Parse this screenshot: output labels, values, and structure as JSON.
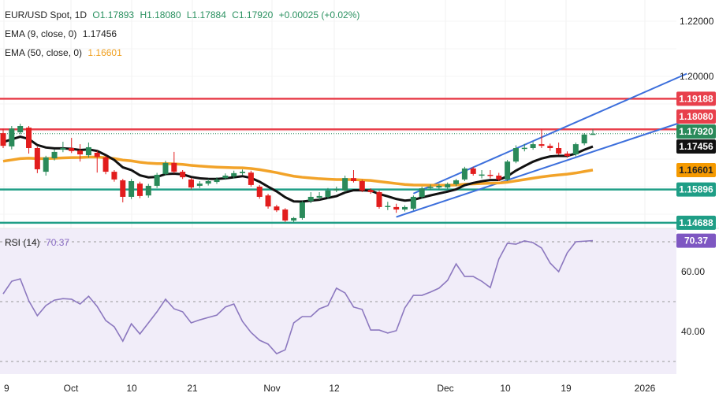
{
  "legend": {
    "symbol": "EUR/USD Spot, 1D",
    "open": "O1.17893",
    "high": "H1.18080",
    "low": "L1.17884",
    "close": "C1.17920",
    "change": "+0.00025 (+0.02%)",
    "ema9_label": "EMA (9, close, 0)",
    "ema9_value": "1.17456",
    "ema50_label": "EMA (50, close, 0)",
    "ema50_value": "1.16601",
    "rsi_label": "RSI (14)",
    "rsi_value": "70.37"
  },
  "colors": {
    "up": "#2a8a5a",
    "down": "#e21d1d",
    "ema9": "#111111",
    "ema50": "#f2a329",
    "channel": "#3c6fdc",
    "resistance": "#e8404c",
    "support": "#1f9e86",
    "rsi": "#8c78bf",
    "rsi_bg": "#f1edf9"
  },
  "chart_data": [
    {
      "type": "candlestick",
      "title": "EUR/USD Spot, 1D",
      "ylim": [
        1.142,
        1.224
      ],
      "y_ticks": [
        "1.22000",
        "1.20000"
      ],
      "x_ticks": [
        "9",
        "Oct",
        "10",
        "21",
        "Nov",
        "12",
        "Dec",
        "10",
        "19",
        "2026"
      ],
      "ohlc": [
        [
          1.1794,
          1.181,
          1.174,
          1.1748
        ],
        [
          1.1746,
          1.182,
          1.1735,
          1.1811
        ],
        [
          1.1797,
          1.1828,
          1.179,
          1.182
        ],
        [
          1.1814,
          1.182,
          1.172,
          1.174
        ],
        [
          1.174,
          1.1745,
          1.1649,
          1.1663
        ],
        [
          1.1654,
          1.1712,
          1.164,
          1.1706
        ],
        [
          1.1703,
          1.1735,
          1.1695,
          1.1726
        ],
        [
          1.1734,
          1.1763,
          1.1725,
          1.174
        ],
        [
          1.174,
          1.1777,
          1.1722,
          1.1729
        ],
        [
          1.1731,
          1.1754,
          1.1691,
          1.1717
        ],
        [
          1.1714,
          1.176,
          1.1706,
          1.1743
        ],
        [
          1.1723,
          1.173,
          1.1651,
          1.1708
        ],
        [
          1.1706,
          1.1712,
          1.1645,
          1.1654
        ],
        [
          1.1654,
          1.166,
          1.1618,
          1.1626
        ],
        [
          1.1623,
          1.1628,
          1.1543,
          1.1563
        ],
        [
          1.1563,
          1.1628,
          1.1555,
          1.162
        ],
        [
          1.1611,
          1.1618,
          1.1558,
          1.1566
        ],
        [
          1.1568,
          1.161,
          1.156,
          1.1603
        ],
        [
          1.1603,
          1.165,
          1.1595,
          1.1643
        ],
        [
          1.1646,
          1.1694,
          1.164,
          1.1686
        ],
        [
          1.1686,
          1.1726,
          1.1648,
          1.1654
        ],
        [
          1.1654,
          1.166,
          1.1628,
          1.1634
        ],
        [
          1.1626,
          1.1632,
          1.159,
          1.1597
        ],
        [
          1.1603,
          1.162,
          1.1595,
          1.1611
        ],
        [
          1.1611,
          1.1628,
          1.1604,
          1.162
        ],
        [
          1.1617,
          1.1634,
          1.161,
          1.1626
        ],
        [
          1.1631,
          1.1648,
          1.1625,
          1.164
        ],
        [
          1.1637,
          1.1658,
          1.163,
          1.1649
        ],
        [
          1.1649,
          1.1662,
          1.1642,
          1.1654
        ],
        [
          1.1651,
          1.1658,
          1.16,
          1.1606
        ],
        [
          1.16,
          1.1606,
          1.1556,
          1.1563
        ],
        [
          1.1568,
          1.1574,
          1.152,
          1.1528
        ],
        [
          1.1528,
          1.1534,
          1.1508,
          1.1514
        ],
        [
          1.1517,
          1.1522,
          1.1472,
          1.1477
        ],
        [
          1.1477,
          1.149,
          1.147,
          1.1486
        ],
        [
          1.1486,
          1.1548,
          1.148,
          1.1543
        ],
        [
          1.1548,
          1.158,
          1.154,
          1.1563
        ],
        [
          1.156,
          1.158,
          1.1552,
          1.1566
        ],
        [
          1.1563,
          1.1595,
          1.1556,
          1.1586
        ],
        [
          1.1586,
          1.16,
          1.158,
          1.1591
        ],
        [
          1.1586,
          1.164,
          1.158,
          1.1631
        ],
        [
          1.1631,
          1.166,
          1.1615,
          1.162
        ],
        [
          1.162,
          1.1625,
          1.158,
          1.1586
        ],
        [
          1.1588,
          1.1594,
          1.1574,
          1.158
        ],
        [
          1.158,
          1.1586,
          1.152,
          1.1526
        ],
        [
          1.1528,
          1.1545,
          1.1515,
          1.153
        ],
        [
          1.1526,
          1.1538,
          1.1505,
          1.1517
        ],
        [
          1.1517,
          1.1532,
          1.151,
          1.1526
        ],
        [
          1.152,
          1.1568,
          1.1514,
          1.1563
        ],
        [
          1.1563,
          1.16,
          1.1556,
          1.1594
        ],
        [
          1.1597,
          1.1608,
          1.1588,
          1.1599
        ],
        [
          1.1597,
          1.161,
          1.159,
          1.1603
        ],
        [
          1.1597,
          1.1615,
          1.159,
          1.1609
        ],
        [
          1.1609,
          1.1628,
          1.1602,
          1.1623
        ],
        [
          1.1626,
          1.1672,
          1.162,
          1.1666
        ],
        [
          1.1666,
          1.1672,
          1.164,
          1.1646
        ],
        [
          1.1643,
          1.166,
          1.163,
          1.1644
        ],
        [
          1.1643,
          1.166,
          1.163,
          1.1642
        ],
        [
          1.164,
          1.165,
          1.162,
          1.1626
        ],
        [
          1.1626,
          1.1697,
          1.162,
          1.1691
        ],
        [
          1.1691,
          1.175,
          1.1685,
          1.174
        ],
        [
          1.174,
          1.1755,
          1.1728,
          1.1741
        ],
        [
          1.174,
          1.1762,
          1.1734,
          1.1754
        ],
        [
          1.1754,
          1.1808,
          1.174,
          1.1748
        ],
        [
          1.1748,
          1.1756,
          1.173,
          1.174
        ],
        [
          1.174,
          1.176,
          1.1715,
          1.172
        ],
        [
          1.172,
          1.1728,
          1.1705,
          1.1711
        ],
        [
          1.1717,
          1.176,
          1.171,
          1.1754
        ],
        [
          1.1757,
          1.1794,
          1.175,
          1.1789
        ],
        [
          1.1789,
          1.1808,
          1.1788,
          1.1792
        ]
      ],
      "ema9": {
        "label": "EMA (9, close, 0)",
        "last": 1.17456
      },
      "ema50": {
        "label": "EMA (50, close, 0)",
        "last": 1.16601
      },
      "horizontal_levels": [
        {
          "value": 1.19188,
          "label": "1.19188",
          "kind": "resistance"
        },
        {
          "value": 1.1808,
          "label": "1.18080",
          "kind": "resistance"
        },
        {
          "value": 1.15896,
          "label": "1.15896",
          "kind": "support"
        },
        {
          "value": 1.14688,
          "label": "1.14688",
          "kind": "support"
        }
      ],
      "price_labels": [
        {
          "label": "1.17920",
          "value": 1.1792,
          "color": "#2a8a5a"
        },
        {
          "label": "1.17456",
          "value": 1.17456,
          "color": "#111111"
        },
        {
          "label": "1.16601",
          "value": 1.16601,
          "color": "#f59a00"
        }
      ],
      "channel": {
        "upper": [
          [
            48,
            1.1575
          ],
          [
            80,
            1.201
          ]
        ],
        "lower": [
          [
            46,
            1.149
          ],
          [
            80,
            1.184
          ]
        ]
      }
    },
    {
      "type": "line",
      "title": "RSI (14)",
      "ylim": [
        26,
        75
      ],
      "y_ticks": [
        "60.00",
        "40.00"
      ],
      "levels": [
        70,
        50,
        30
      ],
      "last_label": "70.37",
      "values": [
        52.6,
        56.8,
        57.6,
        50.3,
        45.3,
        48.7,
        50.5,
        51,
        50.8,
        49.2,
        51.8,
        48.4,
        43.7,
        41.6,
        36.8,
        42.6,
        39.2,
        42.9,
        46.6,
        50.8,
        47.6,
        46.6,
        42.9,
        43.9,
        44.7,
        45.5,
        48.2,
        49.2,
        43.4,
        39.7,
        37.1,
        35.8,
        32.6,
        33.9,
        42.9,
        45,
        45,
        47.6,
        48.7,
        54.5,
        52.9,
        48.2,
        47.4,
        40.5,
        40.5,
        39.5,
        40.3,
        47.9,
        52.1,
        52.1,
        53.2,
        54.5,
        57.1,
        62.6,
        58.4,
        58.4,
        56.8,
        54.7,
        64.2,
        69.5,
        69.2,
        70.3,
        69.7,
        67.9,
        62.9,
        60,
        66.3,
        70,
        70.2,
        70.37
      ]
    }
  ]
}
